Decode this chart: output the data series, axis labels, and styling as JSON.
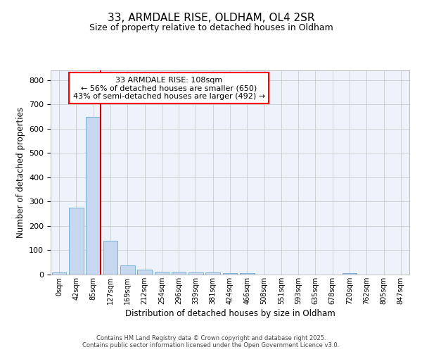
{
  "title1": "33, ARMDALE RISE, OLDHAM, OL4 2SR",
  "title2": "Size of property relative to detached houses in Oldham",
  "xlabel": "Distribution of detached houses by size in Oldham",
  "ylabel": "Number of detached properties",
  "annotation_line1": "33 ARMDALE RISE: 108sqm",
  "annotation_line2": "← 56% of detached houses are smaller (650)",
  "annotation_line3": "43% of semi-detached houses are larger (492) →",
  "bar_color": "#c5d8f0",
  "bar_edge_color": "#7bafd4",
  "vline_color": "#cc0000",
  "categories": [
    "0sqm",
    "42sqm",
    "85sqm",
    "127sqm",
    "169sqm",
    "212sqm",
    "254sqm",
    "296sqm",
    "339sqm",
    "381sqm",
    "424sqm",
    "466sqm",
    "508sqm",
    "551sqm",
    "593sqm",
    "635sqm",
    "678sqm",
    "720sqm",
    "762sqm",
    "805sqm",
    "847sqm"
  ],
  "values": [
    8,
    275,
    650,
    140,
    38,
    20,
    13,
    12,
    10,
    8,
    7,
    5,
    0,
    0,
    0,
    0,
    0,
    5,
    0,
    0,
    0
  ],
  "ylim": [
    0,
    840
  ],
  "yticks": [
    0,
    100,
    200,
    300,
    400,
    500,
    600,
    700,
    800
  ],
  "grid_color": "#cccccc",
  "bg_color": "#eef2fb",
  "footer1": "Contains HM Land Registry data © Crown copyright and database right 2025.",
  "footer2": "Contains public sector information licensed under the Open Government Licence v3.0."
}
